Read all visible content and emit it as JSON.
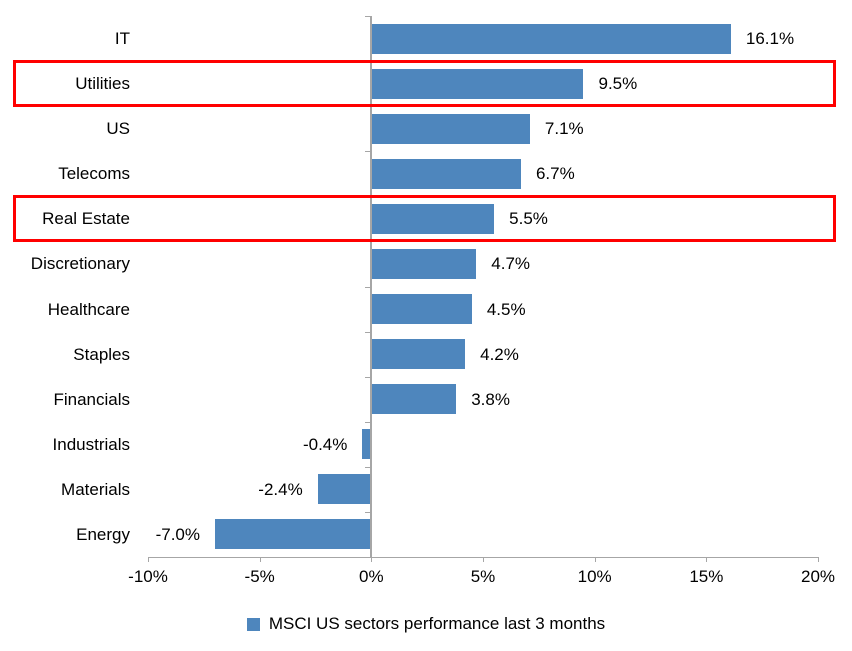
{
  "chart_data": {
    "type": "bar",
    "orientation": "horizontal",
    "title": "",
    "xlabel": "",
    "ylabel": "",
    "categories": [
      "IT",
      "Utilities",
      "US",
      "Telecoms",
      "Real Estate",
      "Discretionary",
      "Healthcare",
      "Staples",
      "Financials",
      "Industrials",
      "Materials",
      "Energy"
    ],
    "values": [
      16.1,
      9.5,
      7.1,
      6.7,
      5.5,
      4.7,
      4.5,
      4.2,
      3.8,
      -0.4,
      -2.4,
      -7.0
    ],
    "value_labels": [
      "16.1%",
      "9.5%",
      "7.1%",
      "6.7%",
      "5.5%",
      "4.7%",
      "4.5%",
      "4.2%",
      "3.8%",
      "-0.4%",
      "-2.4%",
      "-7.0%"
    ],
    "xlim": [
      -10,
      20
    ],
    "x_tick_values": [
      -10,
      -5,
      0,
      5,
      10,
      15,
      20
    ],
    "x_tick_labels": [
      "-10%",
      "-5%",
      "0%",
      "5%",
      "10%",
      "15%",
      "20%"
    ],
    "grid": false,
    "legend": {
      "label": "MSCI US sectors performance last 3 months",
      "position": "bottom"
    },
    "highlighted_categories": [
      "Utilities",
      "Real Estate"
    ],
    "colors": {
      "bar": "#4E86BD",
      "highlight_box": "#FF0000",
      "axis_line": "#A6A6A6",
      "text": "#000000"
    }
  }
}
